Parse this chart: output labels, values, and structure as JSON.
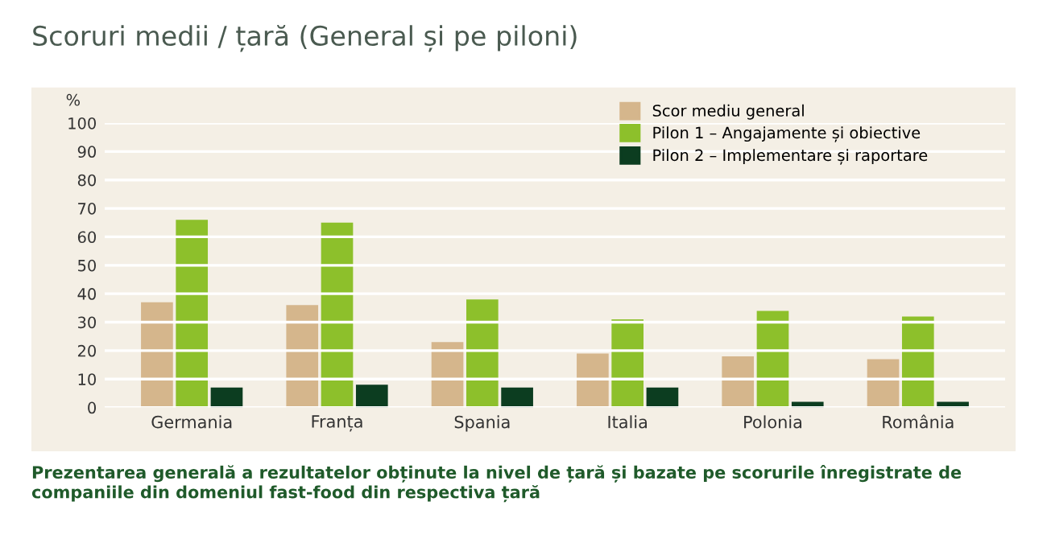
{
  "chart_data": {
    "type": "bar",
    "title": "Scoruri medii / țară (General și pe piloni)",
    "ylabel": "%",
    "categories": [
      "Germania",
      "Franța",
      "Spania",
      "Italia",
      "Polonia",
      "România"
    ],
    "series": [
      {
        "name": "Scor mediu general",
        "color": "#d5b68c",
        "values": [
          37,
          36,
          23,
          19,
          18,
          17
        ]
      },
      {
        "name": "Pilon 1 – Angajamente și obiective",
        "color": "#8dc02b",
        "values": [
          66,
          65,
          38,
          31,
          34,
          32
        ]
      },
      {
        "name": "Pilon 2 – Implementare și raportare",
        "color": "#0c3d20",
        "values": [
          7,
          8,
          7,
          7,
          2,
          2
        ]
      }
    ],
    "ylim": [
      0,
      100
    ],
    "yticks": [
      0,
      10,
      20,
      30,
      40,
      50,
      60,
      70,
      80,
      90,
      100
    ],
    "grid": "y",
    "legend": "top right",
    "annotations": [
      "Prezentarea generală a rezultatelor obținute la nivel de țară și bazate pe scorurile înregistrate de companiile din domeniul fast-food din respectiva țară"
    ]
  }
}
